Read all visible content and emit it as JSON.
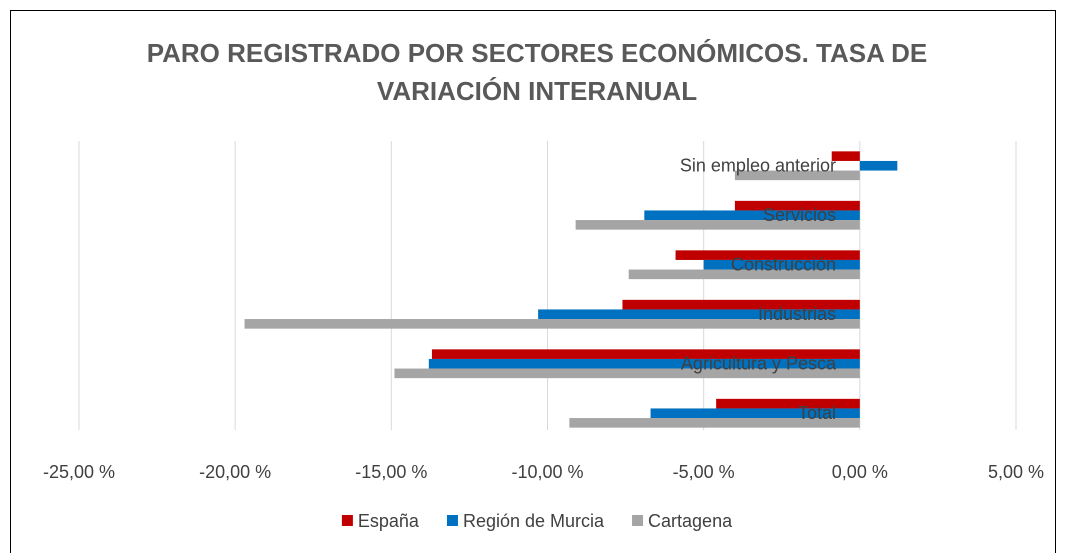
{
  "chart_data": {
    "type": "barh",
    "title": "PARO REGISTRADO POR SECTORES ECONÓMICOS. TASA DE VARIACIÓN INTERANUAL",
    "categories": [
      "Total",
      "Agricultura y Pesca",
      "Industrias",
      "Construcción",
      "Servicios",
      "Sin empleo anterior"
    ],
    "series": [
      {
        "name": "España",
        "color": "#c00000",
        "values": [
          -4.6,
          -13.7,
          -7.6,
          -5.9,
          -4.0,
          -0.9
        ]
      },
      {
        "name": "Región de Murcia",
        "color": "#0070c0",
        "values": [
          -6.7,
          -13.8,
          -10.3,
          -5.0,
          -6.9,
          1.2
        ]
      },
      {
        "name": "Cartagena",
        "color": "#a5a5a5",
        "values": [
          -9.3,
          -14.9,
          -19.7,
          -7.4,
          -9.1,
          -4.0
        ]
      }
    ],
    "xlim": [
      -25,
      5
    ],
    "xticks": [
      {
        "value": -25,
        "label": "-25,00 %"
      },
      {
        "value": -20,
        "label": "-20,00 %"
      },
      {
        "value": -15,
        "label": "-15,00 %"
      },
      {
        "value": -10,
        "label": "-10,00 %"
      },
      {
        "value": -5,
        "label": "-5,00 %"
      },
      {
        "value": 0,
        "label": "0,00 %"
      },
      {
        "value": 5,
        "label": "5,00 %"
      }
    ],
    "grid": true,
    "legend": "bottom"
  }
}
